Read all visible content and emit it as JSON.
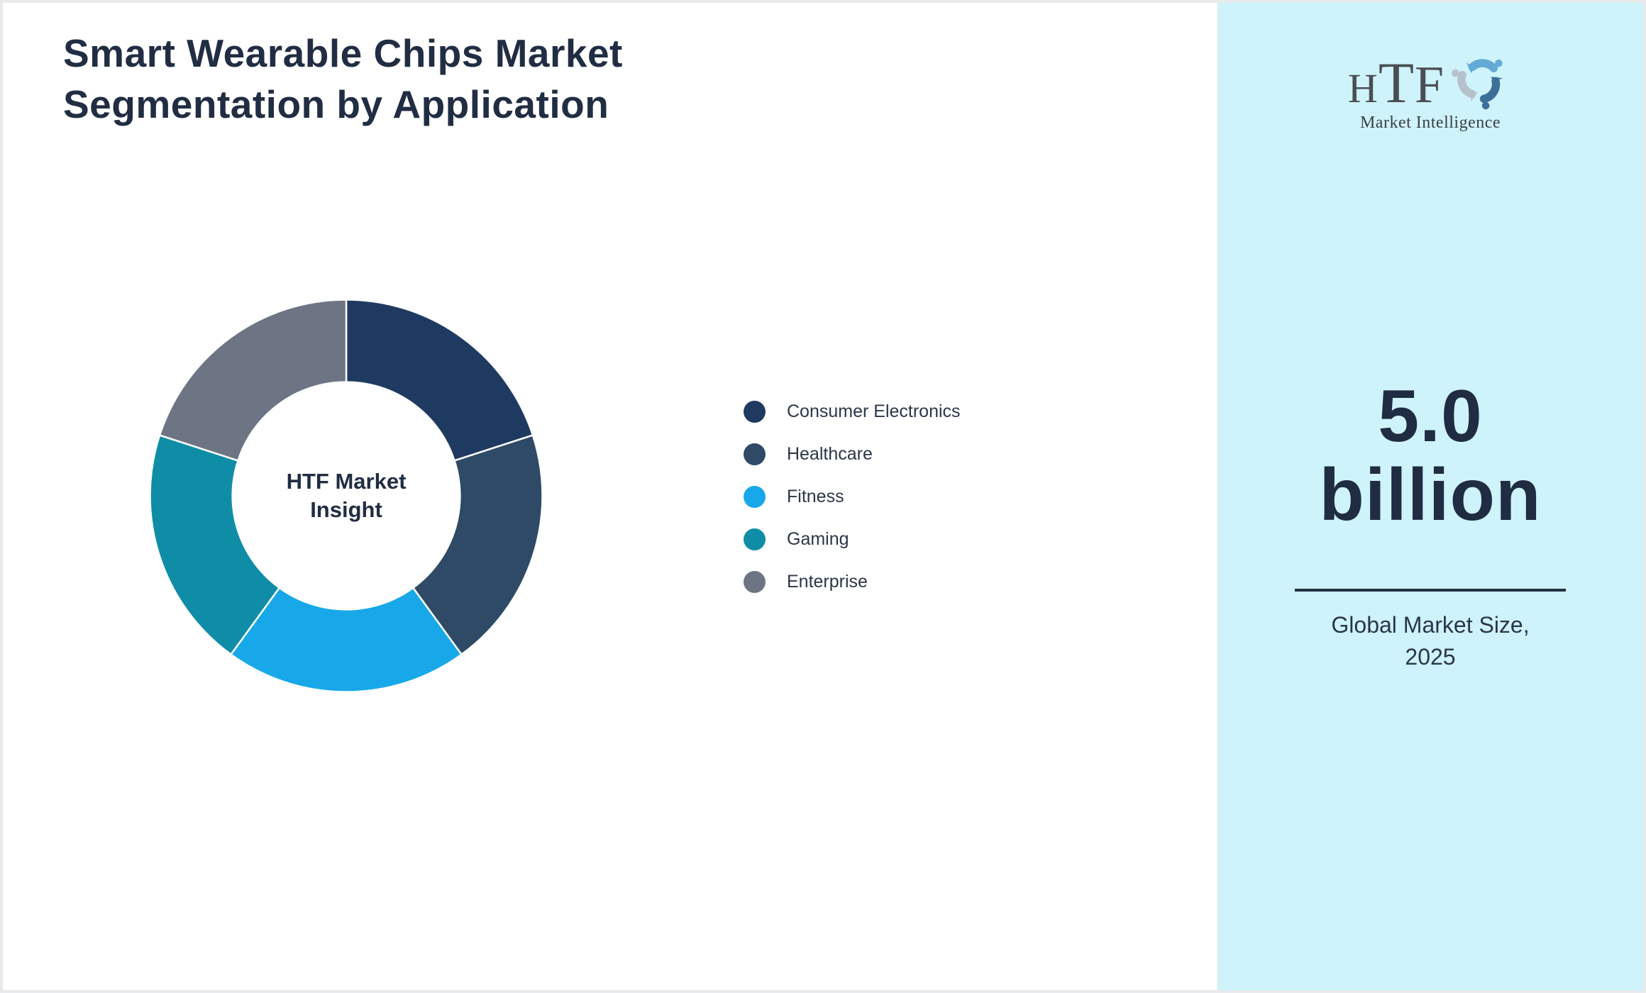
{
  "page": {
    "title_lines": [
      "Smart Wearable Chips Market",
      "Segmentation by Application"
    ]
  },
  "chart_data": {
    "type": "pie",
    "subtype": "donut",
    "title": "Smart Wearable Chips Market Segmentation by Application",
    "center_label_lines": [
      "HTF Market",
      "Insight"
    ],
    "categories": [
      "Consumer Electronics",
      "Healthcare",
      "Fitness",
      "Gaming",
      "Enterprise"
    ],
    "values": [
      20,
      20,
      20,
      20,
      20
    ],
    "segments": [
      {
        "label": "Consumer Electronics",
        "value": 20,
        "color": "#1f3a60"
      },
      {
        "label": "Healthcare",
        "value": 20,
        "color": "#2e4a66"
      },
      {
        "label": "Fitness",
        "value": 20,
        "color": "#18a8ea"
      },
      {
        "label": "Gaming",
        "value": 20,
        "color": "#0f8da7"
      },
      {
        "label": "Enterprise",
        "value": 20,
        "color": "#6d7585"
      }
    ],
    "start_angle_deg": 0,
    "direction": "clockwise",
    "inner_radius_ratio": 0.58,
    "separator_color": "#ffffff",
    "legend_position": "right",
    "grid": false
  },
  "right_panel": {
    "background": "#cef3fa",
    "logo": {
      "letters": [
        "H",
        "T",
        "F"
      ],
      "subtext": "Market Intelligence"
    },
    "stat_lines": [
      "5.0",
      "billion"
    ],
    "caption_lines": [
      "Global Market Size,",
      "2025"
    ]
  },
  "colors": {
    "title_text": "#212d42",
    "body_text": "#2b3648",
    "panel_bg": "#cef3fa",
    "divider": "#233140",
    "page_border": "#e8eaec",
    "logo_swirl": [
      "#64aad6",
      "#3e6f9b",
      "#b6c1cc"
    ]
  }
}
